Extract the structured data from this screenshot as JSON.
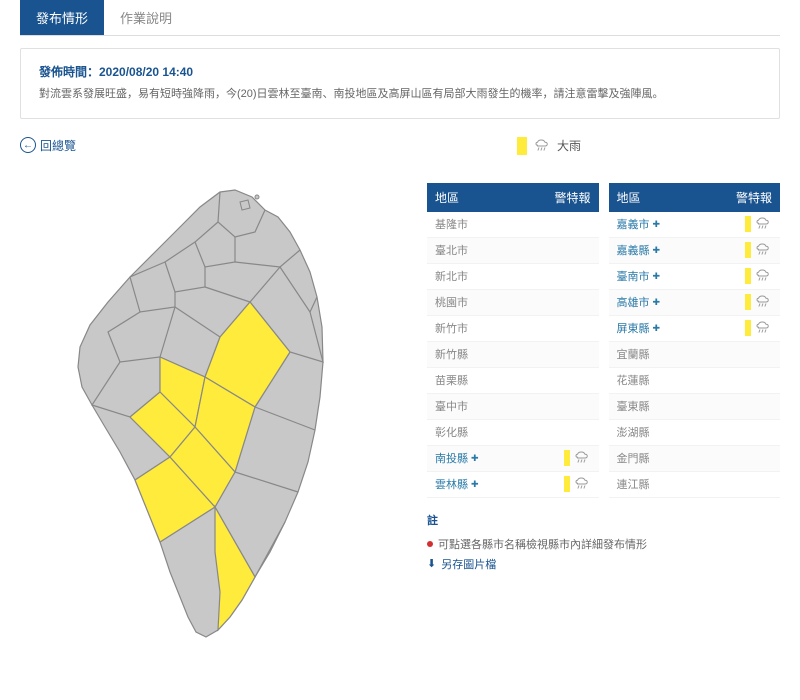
{
  "tabs": {
    "active": "發布情形",
    "other": "作業說明"
  },
  "notice": {
    "title": "發佈時間：2020/08/20 14:40",
    "body": "對流雲系發展旺盛，易有短時強降雨，今(20)日雲林至臺南、南投地區及高屏山區有局部大雨發生的機率，請注意雷擊及強陣風。"
  },
  "back": "回總覽",
  "legend": {
    "label": "大雨",
    "color": "#ffeb3b"
  },
  "headers": {
    "region": "地區",
    "warn": "警特報"
  },
  "left_rows": [
    {
      "name": "基隆市",
      "warn": false
    },
    {
      "name": "臺北市",
      "warn": false
    },
    {
      "name": "新北市",
      "warn": false
    },
    {
      "name": "桃園市",
      "warn": false
    },
    {
      "name": "新竹市",
      "warn": false
    },
    {
      "name": "新竹縣",
      "warn": false
    },
    {
      "name": "苗栗縣",
      "warn": false
    },
    {
      "name": "臺中市",
      "warn": false
    },
    {
      "name": "彰化縣",
      "warn": false
    },
    {
      "name": "南投縣",
      "warn": true
    },
    {
      "name": "雲林縣",
      "warn": true
    }
  ],
  "right_rows": [
    {
      "name": "嘉義市",
      "warn": true
    },
    {
      "name": "嘉義縣",
      "warn": true
    },
    {
      "name": "臺南市",
      "warn": true
    },
    {
      "name": "高雄市",
      "warn": true
    },
    {
      "name": "屏東縣",
      "warn": true
    },
    {
      "name": "宜蘭縣",
      "warn": false
    },
    {
      "name": "花蓮縣",
      "warn": false
    },
    {
      "name": "臺東縣",
      "warn": false
    },
    {
      "name": "澎湖縣",
      "warn": false
    },
    {
      "name": "金門縣",
      "warn": false
    },
    {
      "name": "連江縣",
      "warn": false
    }
  ],
  "footer": {
    "title": "註",
    "note1": "可點選各縣市名稱檢視縣市內詳細發布情形",
    "note2": "另存圖片檔"
  },
  "map": {
    "base_fill": "#c8c8c8",
    "base_stroke": "#888888",
    "warn_fill": "#ffeb3b"
  }
}
